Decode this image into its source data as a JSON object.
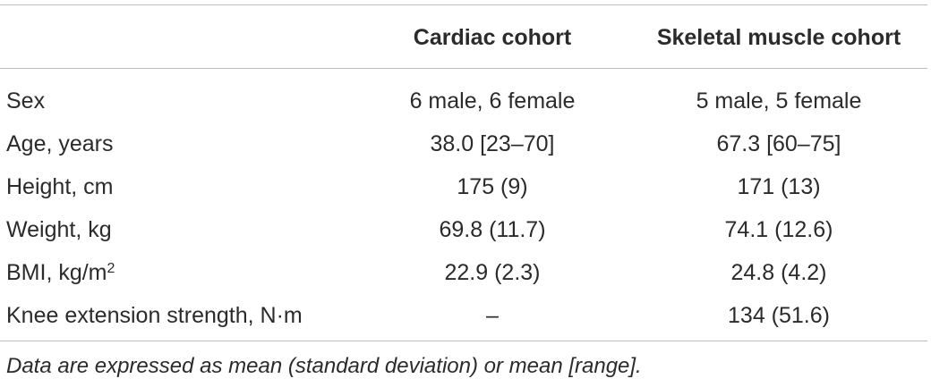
{
  "table": {
    "headers": {
      "label": "",
      "cardiac": "Cardiac cohort",
      "skeletal": "Skeletal muscle cohort"
    },
    "rows": [
      {
        "label": "Sex",
        "label_sup": "",
        "cardiac": "6 male, 6 female",
        "skeletal": "5 male, 5 female"
      },
      {
        "label": "Age, years",
        "label_sup": "",
        "cardiac": "38.0 [23–70]",
        "skeletal": "67.3 [60–75]"
      },
      {
        "label": "Height, cm",
        "label_sup": "",
        "cardiac": "175 (9)",
        "skeletal": "171 (13)"
      },
      {
        "label": "Weight, kg",
        "label_sup": "",
        "cardiac": "69.8 (11.7)",
        "skeletal": "74.1 (12.6)"
      },
      {
        "label": "BMI, kg/m",
        "label_sup": "2",
        "cardiac": "22.9 (2.3)",
        "skeletal": "24.8 (4.2)"
      },
      {
        "label": "Knee extension strength, N·m",
        "label_sup": "",
        "cardiac": "–",
        "skeletal": "134 (51.6)"
      }
    ],
    "footnote": "Data are expressed as mean (standard deviation) or mean [range]."
  }
}
